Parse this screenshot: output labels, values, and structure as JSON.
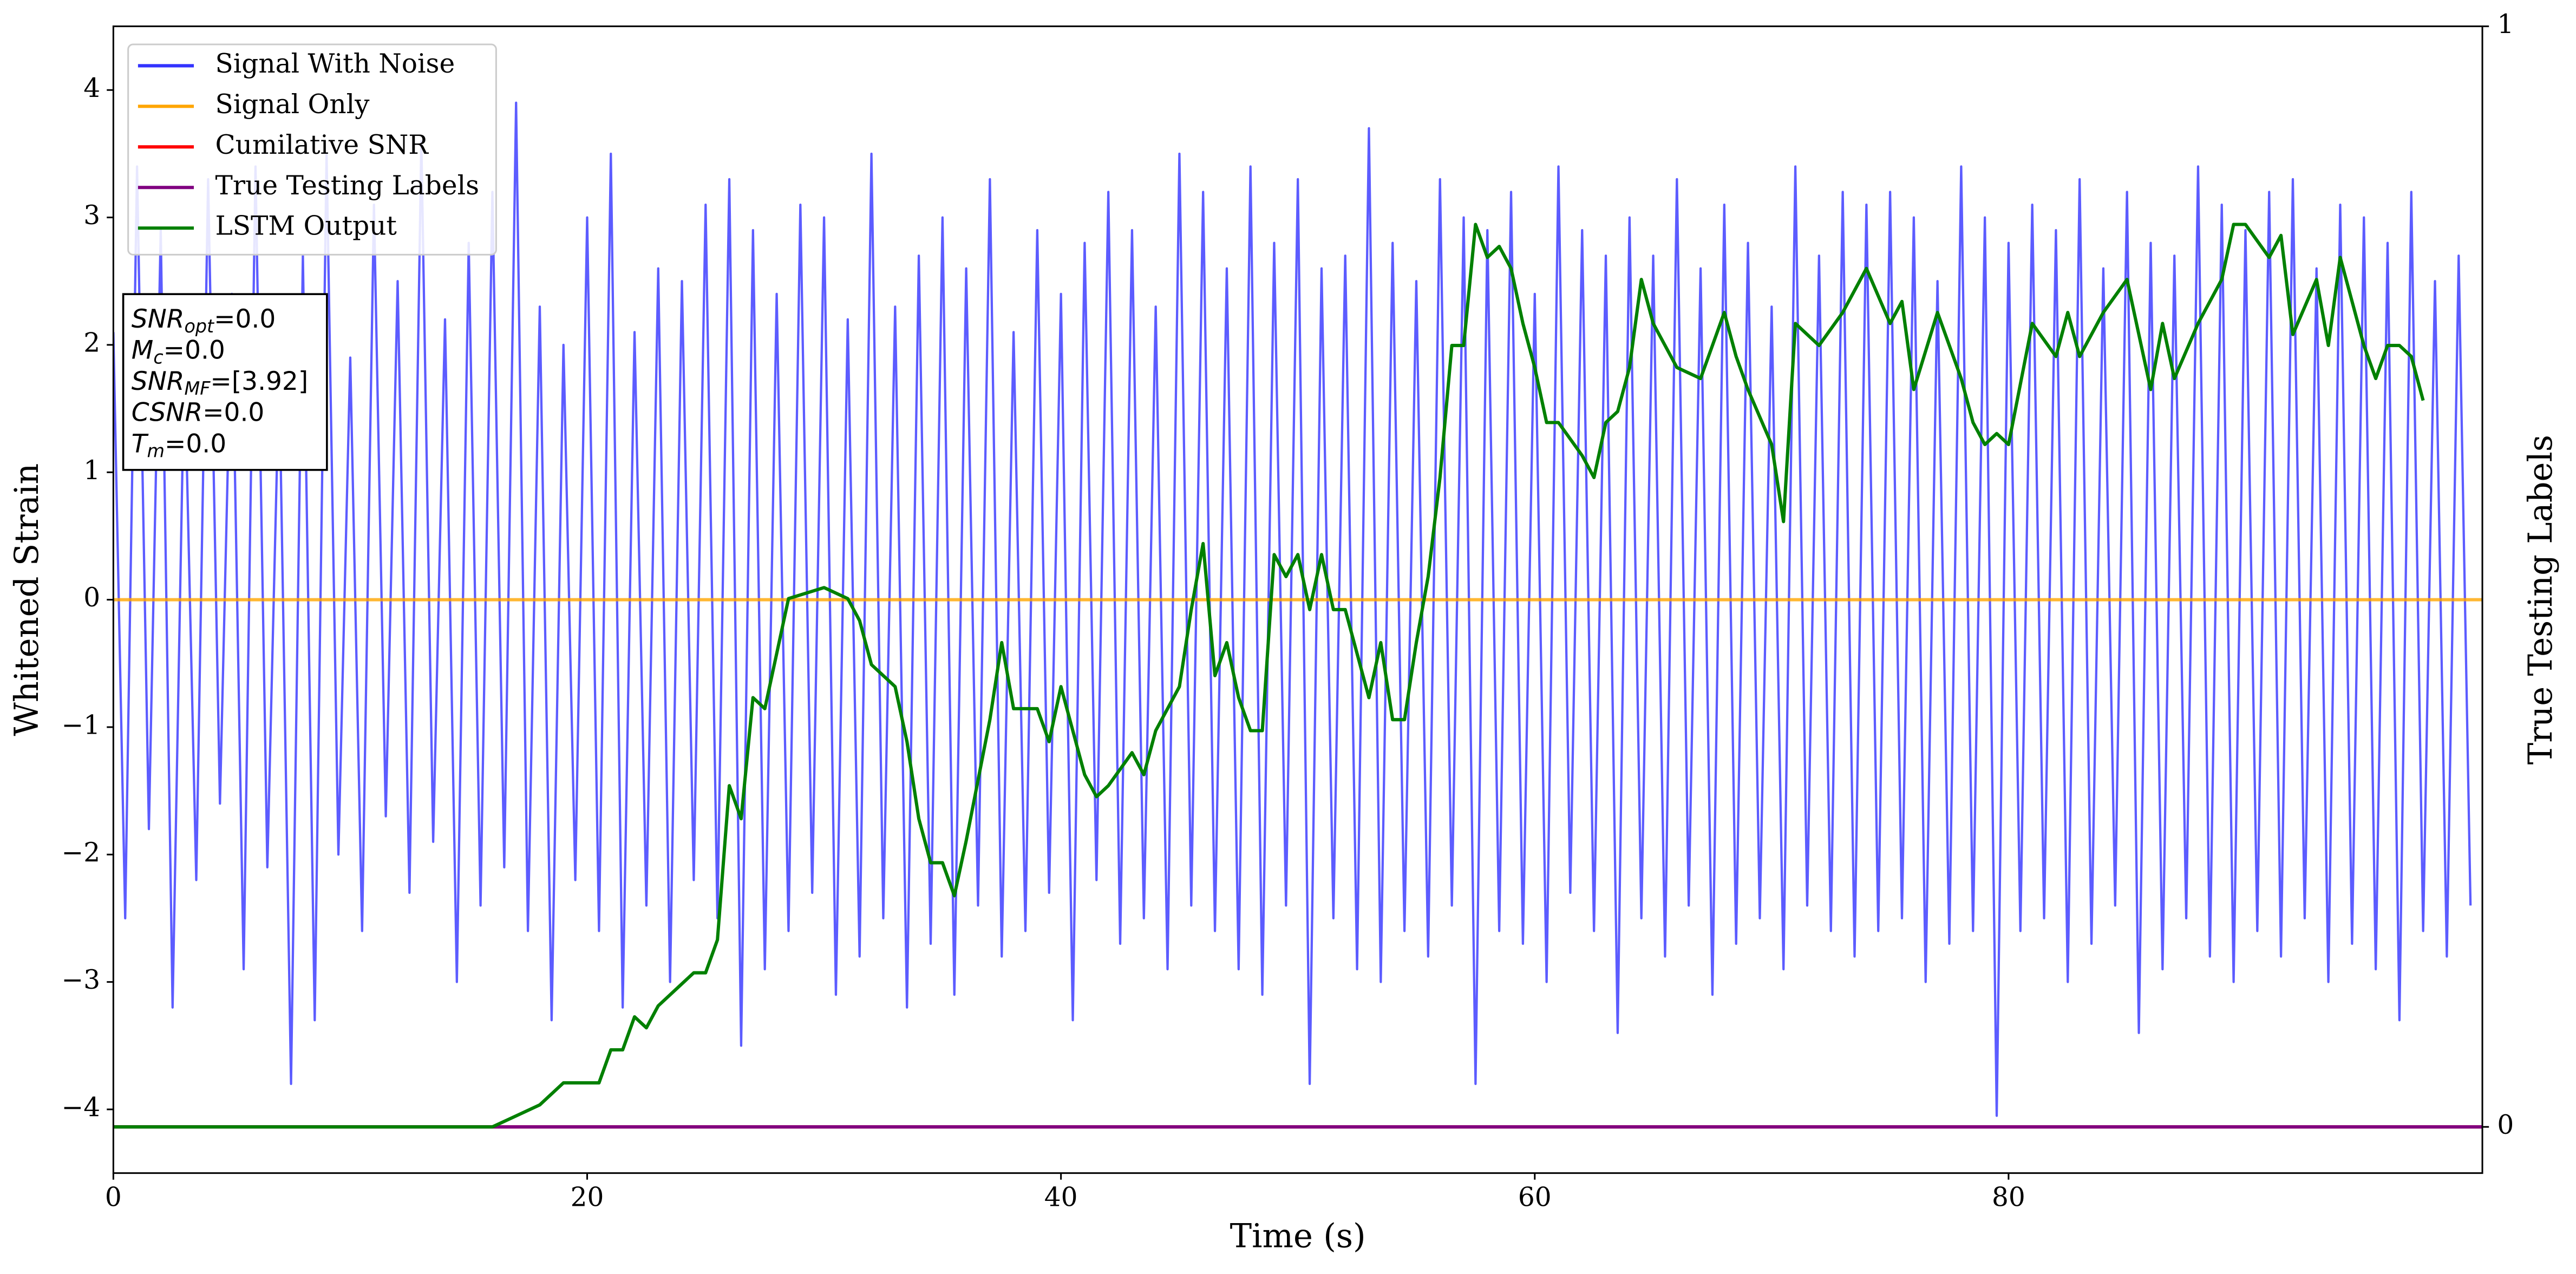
{
  "chart_data": {
    "type": "line",
    "xlabel": "Time (s)",
    "ylabel": "Whitened Strain",
    "y2label": "True Testing Labels",
    "xlim": [
      0,
      100
    ],
    "xticks": [
      0,
      20,
      40,
      60,
      80
    ],
    "ylim": [
      -4.5,
      4.5
    ],
    "yticks": [
      -4,
      -3,
      -2,
      -1,
      0,
      1,
      2,
      3,
      4
    ],
    "y2lim": [
      -0.042,
      1
    ],
    "y2ticks": [
      0,
      1
    ],
    "legend": "upper left",
    "annotation": [
      {
        "main": "SNR",
        "sub": "opt",
        "rest": "=0.0"
      },
      {
        "main": "M",
        "sub": "c",
        "rest": "=0.0"
      },
      {
        "main": "SNR",
        "sub": "MF",
        "rest": "=[3.92]"
      },
      {
        "main": "CSNR",
        "rest": "=0.0"
      },
      {
        "main": "T",
        "sub": "m",
        "rest": "=0.0"
      }
    ],
    "series": [
      {
        "name": "Signal With Noise",
        "color": "#3333ff",
        "x": [
          0,
          0.5,
          1,
          1.5,
          2,
          2.5,
          3,
          3.5,
          4,
          4.5,
          5,
          5.5,
          6,
          6.5,
          7,
          7.5,
          8,
          8.5,
          9,
          9.5,
          10,
          10.5,
          11,
          11.5,
          12,
          12.5,
          13,
          13.5,
          14,
          14.5,
          15,
          15.5,
          16,
          16.5,
          17,
          17.5,
          18,
          18.5,
          19,
          19.5,
          20,
          20.5,
          21,
          21.5,
          22,
          22.5,
          23,
          23.5,
          24,
          24.5,
          25,
          25.5,
          26,
          26.5,
          27,
          27.5,
          28,
          28.5,
          29,
          29.5,
          30,
          30.5,
          31,
          31.5,
          32,
          32.5,
          33,
          33.5,
          34,
          34.5,
          35,
          35.5,
          36,
          36.5,
          37,
          37.5,
          38,
          38.5,
          39,
          39.5,
          40,
          40.5,
          41,
          41.5,
          42,
          42.5,
          43,
          43.5,
          44,
          44.5,
          45,
          45.5,
          46,
          46.5,
          47,
          47.5,
          48,
          48.5,
          49,
          49.5,
          50,
          50.5,
          51,
          51.5,
          52,
          52.5,
          53,
          53.5,
          54,
          54.5,
          55,
          55.5,
          56,
          56.5,
          57,
          57.5,
          58,
          58.5,
          59,
          59.5,
          60,
          60.5,
          61,
          61.5,
          62,
          62.5,
          63,
          63.5,
          64,
          64.5,
          65,
          65.5,
          66,
          66.5,
          67,
          67.5,
          68,
          68.5,
          69,
          69.5,
          70,
          70.5,
          71,
          71.5,
          72,
          72.5,
          73,
          73.5,
          74,
          74.5,
          75,
          75.5,
          76,
          76.5,
          77,
          77.5,
          78,
          78.5,
          79,
          79.5,
          80,
          80.5,
          81,
          81.5,
          82,
          82.5,
          83,
          83.5,
          84,
          84.5,
          85,
          85.5,
          86,
          86.5,
          87,
          87.5,
          88,
          88.5,
          89,
          89.5,
          90,
          90.5,
          91,
          91.5,
          92,
          92.5,
          93,
          93.5,
          94,
          94.5,
          95,
          95.5,
          96,
          96.5,
          97,
          97.5,
          98,
          98.5,
          99,
          99.5
        ],
        "values": [
          2.1,
          -2.5,
          3.4,
          -1.8,
          2.9,
          -3.2,
          1.9,
          -2.2,
          3.3,
          -1.6,
          2.4,
          -2.9,
          3.4,
          -2.1,
          1.8,
          -3.8,
          2.7,
          -3.3,
          3.5,
          -2.0,
          1.9,
          -2.6,
          3.1,
          -1.7,
          2.5,
          -2.3,
          3.6,
          -1.9,
          2.2,
          -3.0,
          2.8,
          -2.4,
          3.2,
          -2.1,
          3.9,
          -2.6,
          2.3,
          -3.3,
          2.0,
          -2.2,
          3.0,
          -2.6,
          3.5,
          -3.2,
          2.1,
          -2.4,
          2.6,
          -3.0,
          2.5,
          -2.2,
          3.1,
          -2.5,
          3.3,
          -3.5,
          2.9,
          -2.9,
          2.4,
          -2.6,
          3.1,
          -2.3,
          3.0,
          -3.1,
          2.2,
          -2.8,
          3.5,
          -2.5,
          2.3,
          -3.2,
          2.7,
          -2.7,
          3.0,
          -3.1,
          2.6,
          -2.4,
          3.3,
          -2.8,
          2.1,
          -2.6,
          2.9,
          -2.3,
          2.4,
          -3.3,
          2.8,
          -2.2,
          3.2,
          -2.7,
          2.9,
          -2.5,
          2.3,
          -2.9,
          3.5,
          -2.4,
          3.2,
          -2.6,
          2.6,
          -2.9,
          3.4,
          -3.1,
          2.8,
          -2.4,
          3.3,
          -3.8,
          2.6,
          -2.5,
          2.7,
          -2.9,
          3.7,
          -3.0,
          2.8,
          -2.6,
          2.5,
          -2.8,
          3.3,
          -2.4,
          3.0,
          -3.8,
          2.9,
          -2.6,
          3.2,
          -2.7,
          2.4,
          -3.0,
          3.4,
          -2.3,
          2.9,
          -2.6,
          2.7,
          -3.4,
          3.0,
          -2.5,
          2.7,
          -2.8,
          3.3,
          -2.4,
          2.6,
          -3.1,
          3.1,
          -2.7,
          2.8,
          -2.5,
          2.3,
          -2.9,
          3.4,
          -2.4,
          2.7,
          -2.6,
          3.2,
          -2.8,
          3.1,
          -2.6,
          3.2,
          -2.5,
          3.0,
          -3.0,
          2.5,
          -2.7,
          3.4,
          -2.6,
          3.0,
          -4.05,
          2.8,
          -2.6,
          3.1,
          -2.5,
          2.9,
          -3.0,
          3.3,
          -2.7,
          2.6,
          -2.4,
          3.2,
          -3.4,
          2.8,
          -2.9,
          2.7,
          -2.5,
          3.4,
          -2.8,
          3.1,
          -3.0,
          2.9,
          -2.6,
          3.2,
          -2.8,
          3.3,
          -2.5,
          2.6,
          -3.0,
          3.1,
          -2.7,
          3.0,
          -2.9,
          2.8,
          -3.3,
          3.2,
          -2.6,
          2.5,
          -2.8,
          2.7,
          -2.4
        ]
      },
      {
        "name": "Signal Only",
        "color": "#ffa500",
        "x": [
          0,
          100
        ],
        "values": [
          0,
          0
        ]
      },
      {
        "name": "Cumilative SNR",
        "color": "#ff0000",
        "axis": "y2",
        "x": [
          0,
          100
        ],
        "values": [
          0,
          0
        ]
      },
      {
        "name": "True Testing Labels",
        "color": "#800080",
        "axis": "y2",
        "x": [
          0,
          100
        ],
        "values": [
          0,
          0
        ]
      },
      {
        "name": "LSTM Output",
        "color": "#008000",
        "axis": "y2",
        "x": [
          0,
          16,
          17,
          18,
          19,
          20,
          20.5,
          21,
          21.5,
          22,
          22.5,
          23,
          24,
          24.5,
          25,
          25.5,
          26,
          26.5,
          27,
          27.5,
          28,
          28.5,
          30,
          31,
          31.5,
          32,
          32.5,
          33,
          33.5,
          34,
          34.5,
          35,
          35.5,
          36,
          37,
          37.5,
          38,
          39,
          39.5,
          40,
          41,
          41.5,
          42,
          43,
          43.5,
          44,
          45,
          45.5,
          46,
          46.5,
          47,
          47.5,
          48,
          48.5,
          49,
          49.5,
          50,
          50.5,
          51,
          51.5,
          52,
          53,
          53.5,
          54,
          54.5,
          55,
          55.5,
          56,
          56.5,
          57,
          57.5,
          58,
          58.5,
          59,
          59.5,
          60,
          60.5,
          61,
          62,
          62.5,
          63,
          63.5,
          64,
          64.5,
          65,
          66,
          67,
          68,
          68.5,
          69,
          70,
          70.5,
          71,
          72,
          73,
          74,
          75,
          75.5,
          76,
          77,
          78,
          78.5,
          79,
          79.5,
          80,
          81,
          82,
          82.5,
          83,
          84,
          85,
          86,
          86.5,
          87,
          88,
          89,
          89.5,
          90,
          91,
          91.5,
          92,
          93,
          93.5,
          94,
          95,
          95.5,
          96,
          96.5,
          97,
          97.5
        ],
        "values": [
          0,
          0,
          0.01,
          0.02,
          0.04,
          0.04,
          0.04,
          0.07,
          0.07,
          0.1,
          0.09,
          0.11,
          0.13,
          0.14,
          0.14,
          0.17,
          0.31,
          0.28,
          0.39,
          0.38,
          0.43,
          0.48,
          0.49,
          0.48,
          0.46,
          0.42,
          0.41,
          0.4,
          0.35,
          0.28,
          0.24,
          0.24,
          0.21,
          0.26,
          0.37,
          0.44,
          0.38,
          0.38,
          0.35,
          0.4,
          0.32,
          0.3,
          0.31,
          0.34,
          0.32,
          0.36,
          0.4,
          0.47,
          0.53,
          0.41,
          0.44,
          0.39,
          0.36,
          0.36,
          0.52,
          0.5,
          0.52,
          0.47,
          0.52,
          0.47,
          0.47,
          0.39,
          0.44,
          0.37,
          0.37,
          0.44,
          0.5,
          0.59,
          0.71,
          0.71,
          0.82,
          0.79,
          0.8,
          0.78,
          0.73,
          0.69,
          0.64,
          0.64,
          0.61,
          0.59,
          0.64,
          0.65,
          0.69,
          0.77,
          0.73,
          0.69,
          0.68,
          0.74,
          0.7,
          0.67,
          0.62,
          0.55,
          0.73,
          0.71,
          0.74,
          0.78,
          0.73,
          0.75,
          0.67,
          0.74,
          0.68,
          0.64,
          0.62,
          0.63,
          0.62,
          0.73,
          0.7,
          0.74,
          0.7,
          0.74,
          0.77,
          0.67,
          0.73,
          0.68,
          0.73,
          0.77,
          0.82,
          0.82,
          0.79,
          0.81,
          0.72,
          0.77,
          0.71,
          0.79,
          0.71,
          0.68,
          0.71,
          0.71,
          0.7,
          0.66
        ]
      }
    ]
  }
}
